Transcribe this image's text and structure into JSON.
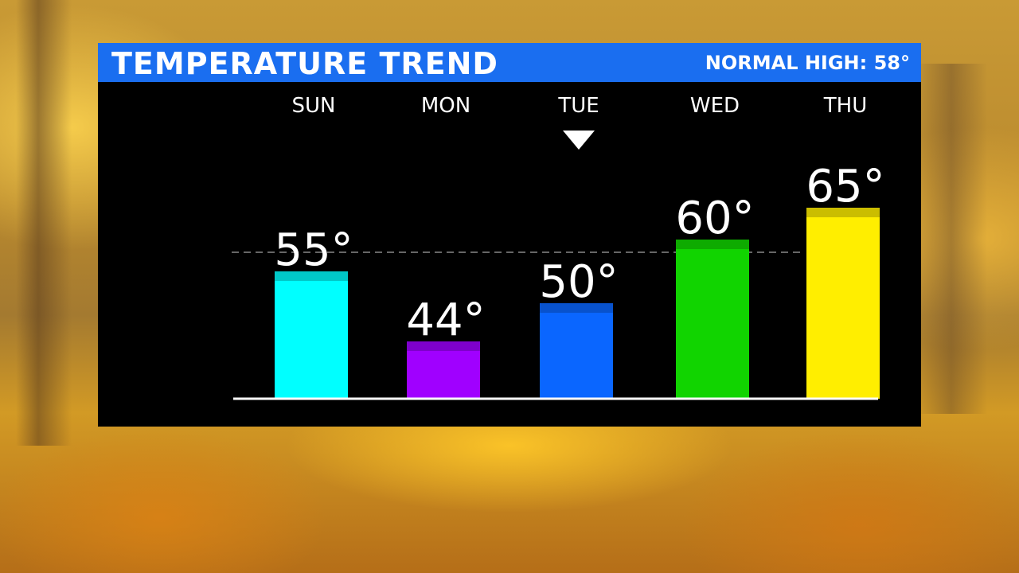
{
  "header": {
    "title": "TEMPERATURE TREND",
    "normal_high": "NORMAL HIGH: 58°"
  },
  "marker": {
    "day": "TUE",
    "icon": "triangle-down-icon"
  },
  "chart_data": {
    "type": "bar",
    "title": "TEMPERATURE TREND",
    "categories": [
      "SUN",
      "MON",
      "TUE",
      "WED",
      "THU"
    ],
    "values": [
      55,
      44,
      50,
      60,
      65
    ],
    "value_labels": [
      "55°",
      "44°",
      "50°",
      "60°",
      "65°"
    ],
    "colors": [
      "#00ffff",
      "#a000ff",
      "#0a66ff",
      "#11d400",
      "#ffee00"
    ],
    "cap_colors": [
      "#00c8c8",
      "#7e00cc",
      "#0852cc",
      "#0eab00",
      "#cbbd00"
    ],
    "reference_line": {
      "value": 58,
      "style": "dashed",
      "color": "#666666"
    },
    "ylim": [
      0,
      65
    ],
    "grid": false,
    "legend": "none",
    "xlabel": "",
    "ylabel": ""
  }
}
